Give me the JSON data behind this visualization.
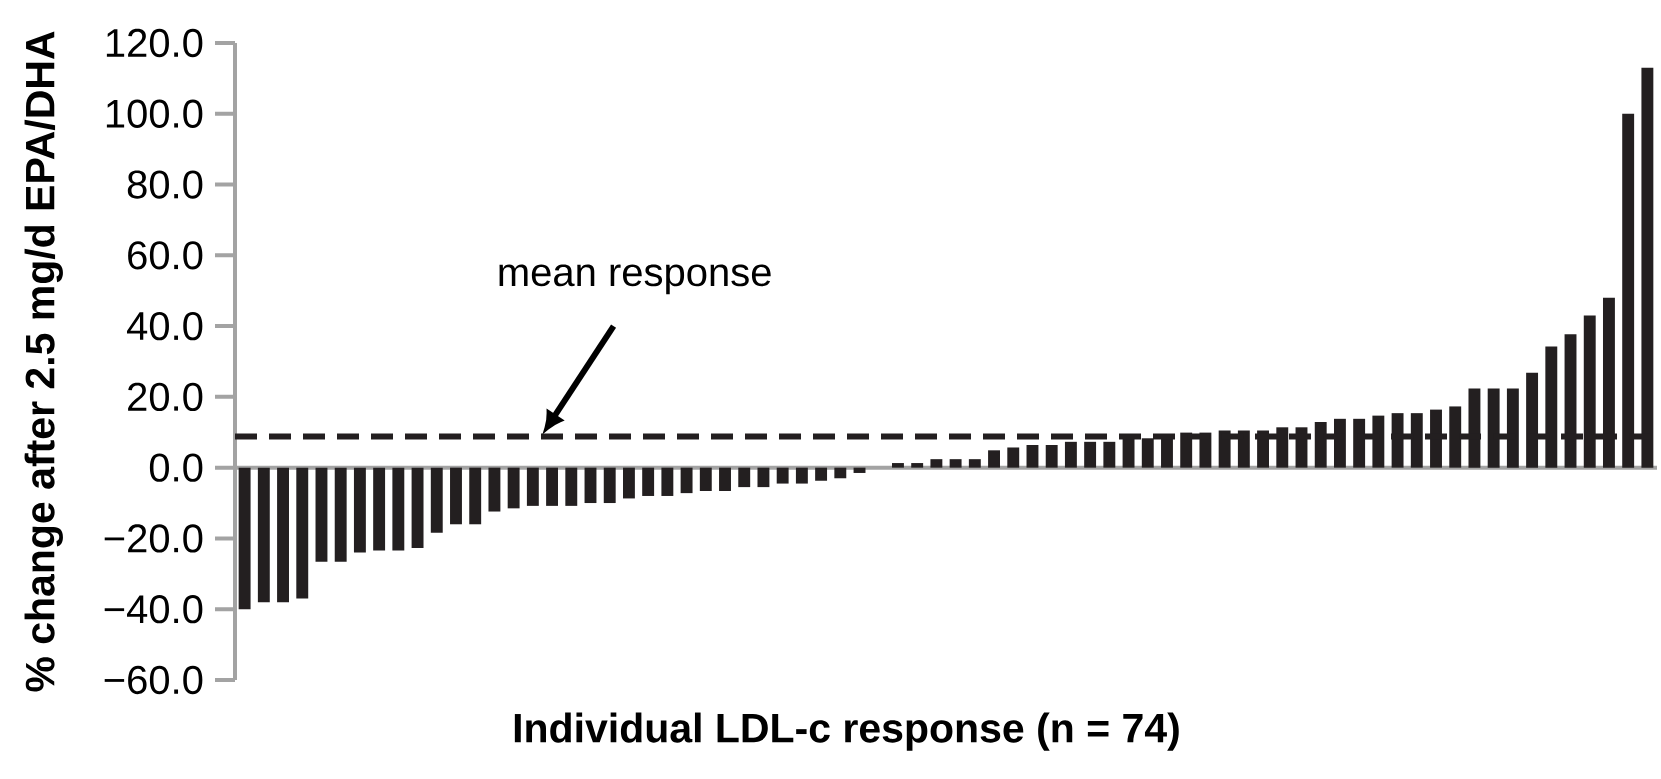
{
  "chart_data": {
    "type": "bar",
    "xlabel": "Individual LDL-c response (n = 74)",
    "ylabel": "% change after 2.5 mg/d EPA/DHA",
    "categories": [
      null,
      null,
      null,
      null,
      null,
      null,
      null,
      null,
      null,
      null,
      null,
      null,
      null,
      null,
      null,
      null,
      null,
      null,
      null,
      null,
      null,
      null,
      null,
      null,
      null,
      null,
      null,
      null,
      null,
      null,
      null,
      null,
      null,
      null,
      null,
      null,
      null,
      null,
      null,
      null,
      null,
      null,
      null,
      null,
      null,
      null,
      null,
      null,
      null,
      null,
      null,
      null,
      null,
      null,
      null,
      null,
      null,
      null,
      null,
      null,
      null,
      null,
      null,
      null,
      null,
      null,
      null,
      null,
      null,
      null,
      null,
      null,
      null,
      null
    ],
    "values": [
      -40,
      -38,
      -38,
      -37,
      -26.6,
      -26.6,
      -24,
      -23.4,
      -23.4,
      -22.7,
      -18.4,
      -16,
      -16,
      -12.4,
      -11.5,
      -10.8,
      -10.8,
      -10.8,
      -10,
      -10,
      -8.7,
      -8,
      -8,
      -7.2,
      -6.6,
      -6.6,
      -5.5,
      -5.5,
      -4.5,
      -4.5,
      -3.7,
      -3,
      -1.5,
      0,
      1.3,
      1.3,
      2.4,
      2.4,
      2.4,
      4.9,
      5.7,
      6.4,
      6.4,
      7.3,
      7.3,
      7.3,
      8.3,
      8.3,
      8.8,
      9.9,
      9.9,
      10.5,
      10.5,
      10.5,
      11.4,
      11.4,
      12.9,
      13.8,
      13.8,
      14.7,
      15.4,
      15.4,
      16.4,
      17.3,
      22.4,
      22.4,
      22.4,
      26.8,
      34.2,
      37.7,
      43,
      48,
      100,
      113
    ],
    "color": "#231f20",
    "ylim": [
      -60,
      120
    ],
    "yticks": [
      {
        "value": -60,
        "label": "−60.0"
      },
      {
        "value": -40,
        "label": "−40.0"
      },
      {
        "value": -20,
        "label": "−20.0"
      },
      {
        "value": 0,
        "label": "0.0"
      },
      {
        "value": 20,
        "label": "20.0"
      },
      {
        "value": 40,
        "label": "40.0"
      },
      {
        "value": 60,
        "label": "60.0"
      },
      {
        "value": 80,
        "label": "80.0"
      },
      {
        "value": 100,
        "label": "100.0"
      },
      {
        "value": 120,
        "label": "120.0"
      }
    ],
    "ref_lines": [
      {
        "axis": "y",
        "value": 8.8,
        "label": "mean response",
        "line_style": "dashed",
        "color": "#231f20"
      }
    ]
  }
}
